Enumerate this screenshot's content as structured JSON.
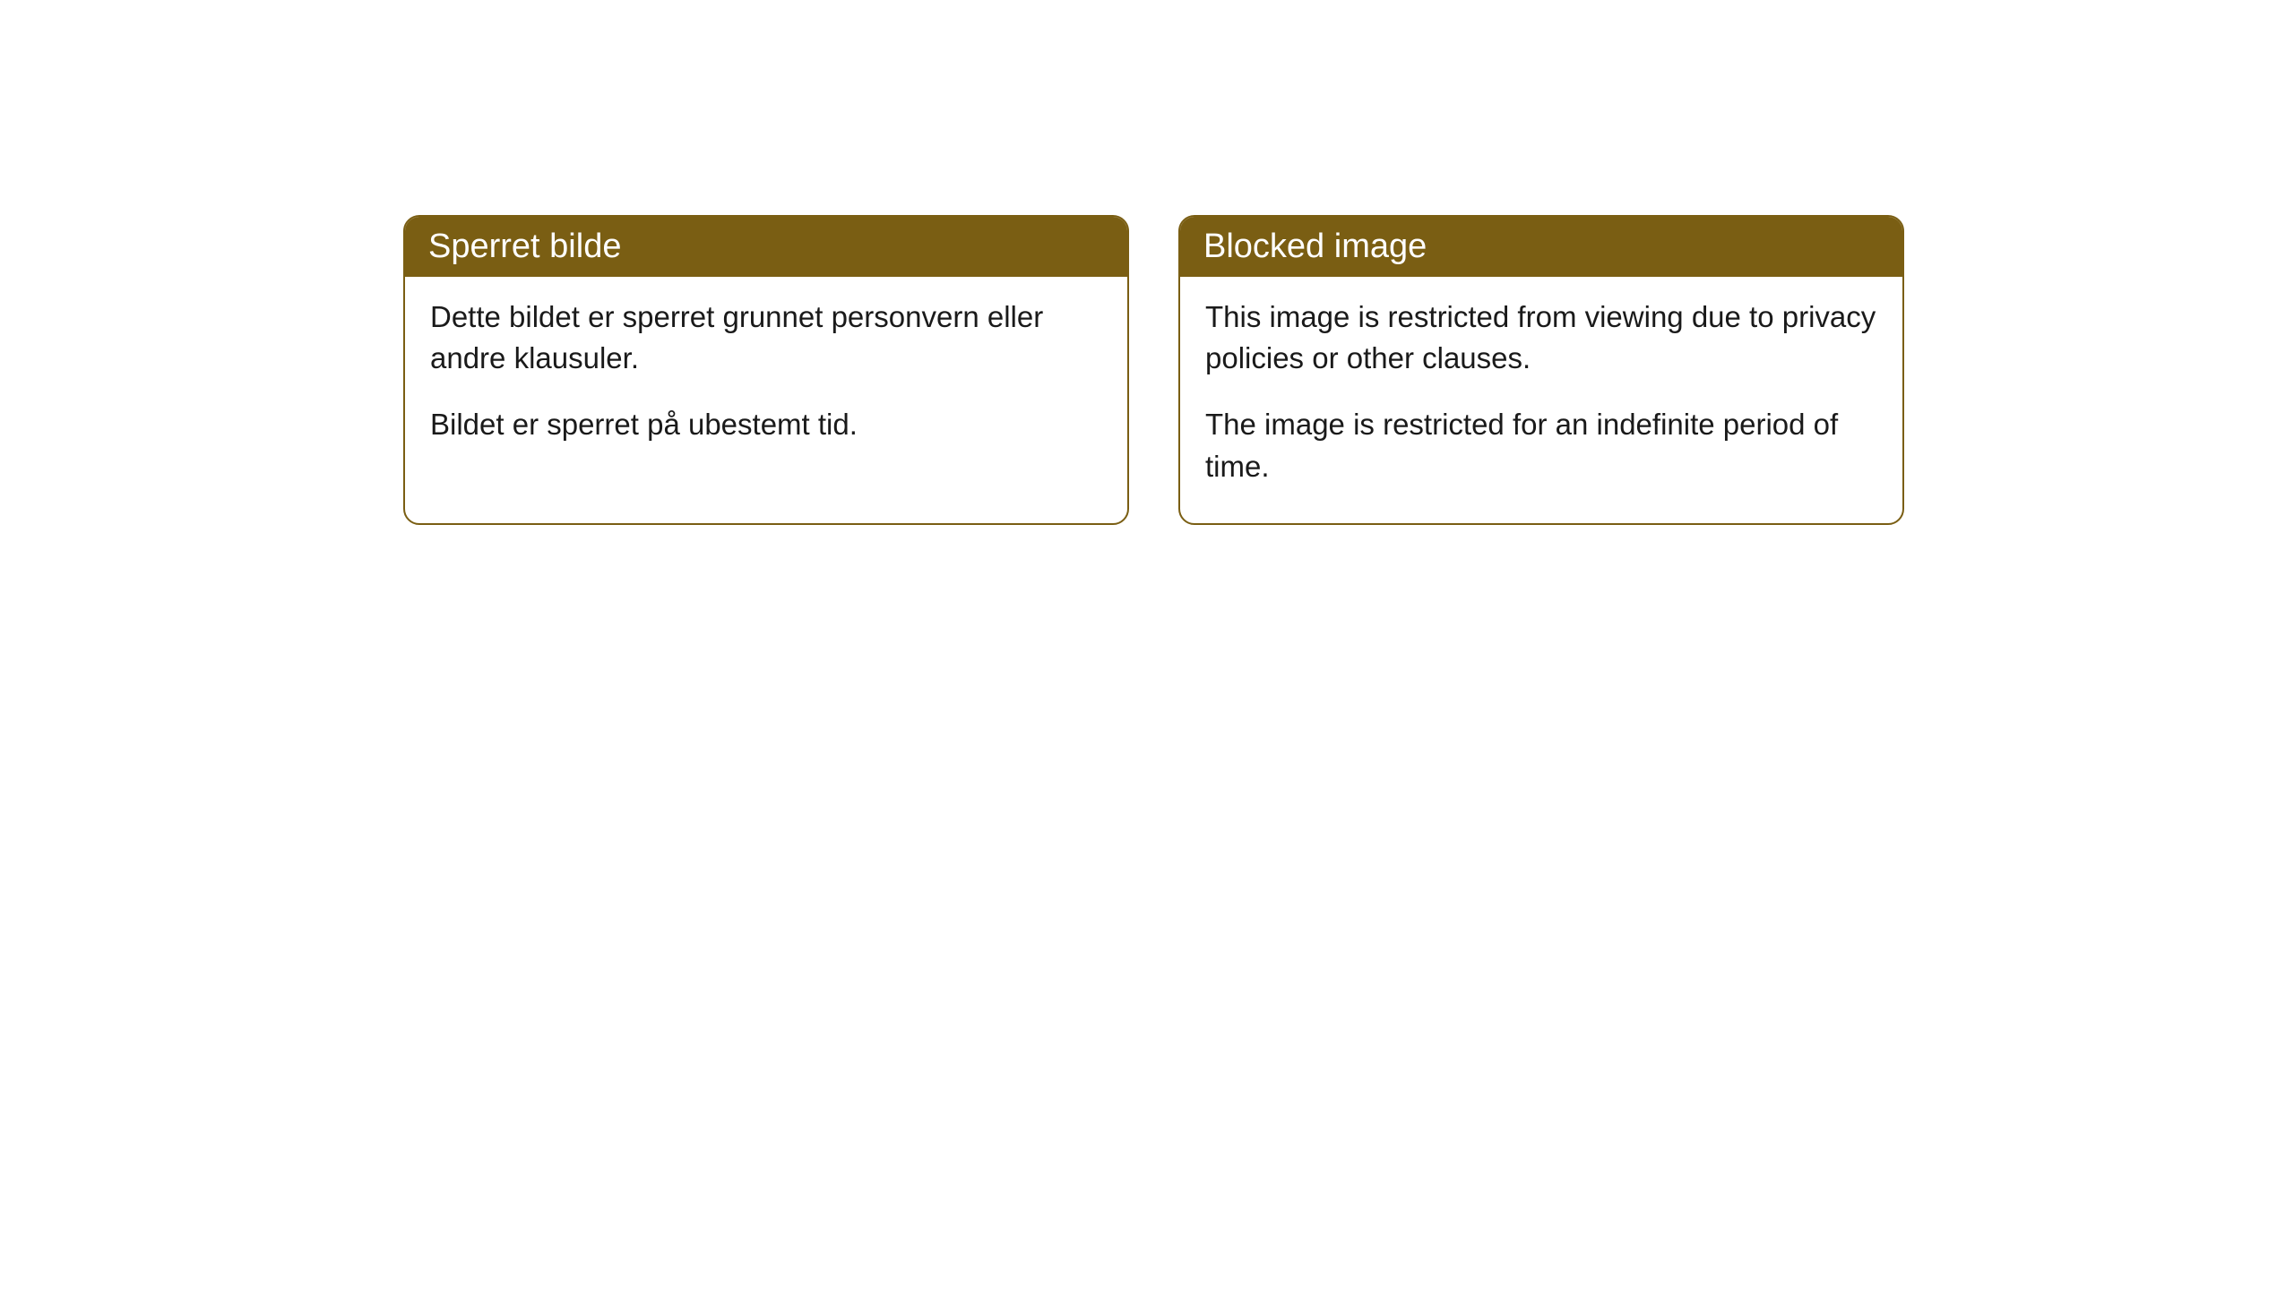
{
  "cards": [
    {
      "title": "Sperret bilde",
      "paragraph1": "Dette bildet er sperret grunnet personvern eller andre klausuler.",
      "paragraph2": "Bildet er sperret på ubestemt tid."
    },
    {
      "title": "Blocked image",
      "paragraph1": "This image is restricted from viewing due to privacy policies or other clauses.",
      "paragraph2": "The image is restricted for an indefinite period of time."
    }
  ],
  "colors": {
    "header_bg": "#7a5e13",
    "header_text": "#ffffff",
    "border": "#7a5e13",
    "body_bg": "#ffffff",
    "body_text": "#1a1a1a"
  }
}
